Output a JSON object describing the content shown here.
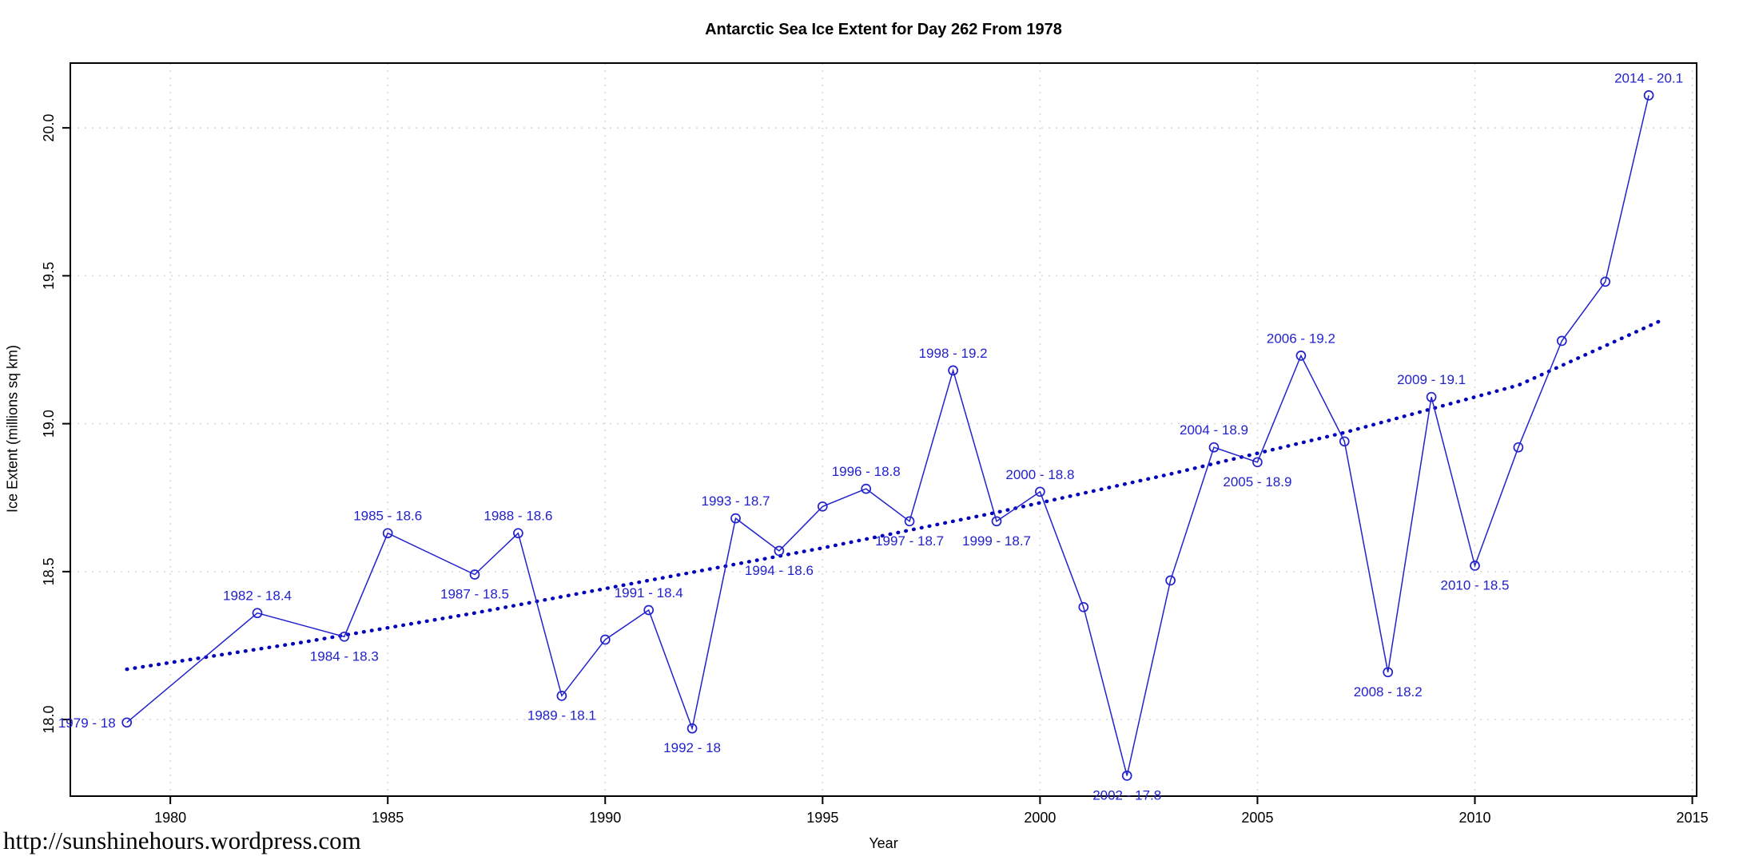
{
  "page": {
    "url_text": "http://sunshinehours.wordpress.com"
  },
  "chart_data": {
    "type": "line",
    "title": "Antarctic Sea Ice Extent for Day 262 From 1978",
    "xlabel": "Year",
    "ylabel": "Ice Extent (millions sq km)",
    "xlim": [
      1977.7,
      2015.1
    ],
    "ylim": [
      17.741,
      20.219
    ],
    "x_ticks": [
      1980,
      1985,
      1990,
      1995,
      2000,
      2005,
      2010,
      2015
    ],
    "y_ticks": [
      18.0,
      18.5,
      19.0,
      19.5,
      20.0
    ],
    "grid": true,
    "legend": "none",
    "marker_style": "open-circle",
    "colors": {
      "series": "#2222cc",
      "trend": "#0000bb",
      "grid": "#d4d4d4",
      "axis": "#000000"
    },
    "points": [
      {
        "year": 1979,
        "value": 17.99,
        "label": "1979 - 18",
        "label_pos": "left"
      },
      {
        "year": 1982,
        "value": 18.36,
        "label": "1982 - 18.4",
        "label_pos": "above"
      },
      {
        "year": 1984,
        "value": 18.28,
        "label": "1984 - 18.3",
        "label_pos": "below"
      },
      {
        "year": 1985,
        "value": 18.63,
        "label": "1985 - 18.6",
        "label_pos": "above"
      },
      {
        "year": 1987,
        "value": 18.49,
        "label": "1987 - 18.5",
        "label_pos": "below"
      },
      {
        "year": 1988,
        "value": 18.63,
        "label": "1988 - 18.6",
        "label_pos": "above"
      },
      {
        "year": 1989,
        "value": 18.08,
        "label": "1989 - 18.1",
        "label_pos": "below"
      },
      {
        "year": 1990,
        "value": 18.27
      },
      {
        "year": 1991,
        "value": 18.37,
        "label": "1991 - 18.4",
        "label_pos": "above"
      },
      {
        "year": 1992,
        "value": 17.97,
        "label": "1992 - 18",
        "label_pos": "below"
      },
      {
        "year": 1993,
        "value": 18.68,
        "label": "1993 - 18.7",
        "label_pos": "above"
      },
      {
        "year": 1994,
        "value": 18.57,
        "label": "1994 - 18.6",
        "label_pos": "below"
      },
      {
        "year": 1995,
        "value": 18.72
      },
      {
        "year": 1996,
        "value": 18.78,
        "label": "1996 - 18.8",
        "label_pos": "above"
      },
      {
        "year": 1997,
        "value": 18.67,
        "label": "1997 - 18.7",
        "label_pos": "below"
      },
      {
        "year": 1998,
        "value": 19.18,
        "label": "1998 - 19.2",
        "label_pos": "above"
      },
      {
        "year": 1999,
        "value": 18.67,
        "label": "1999 - 18.7",
        "label_pos": "below"
      },
      {
        "year": 2000,
        "value": 18.77,
        "label": "2000 - 18.8",
        "label_pos": "above"
      },
      {
        "year": 2001,
        "value": 18.38
      },
      {
        "year": 2002,
        "value": 17.81,
        "label": "2002 - 17.8",
        "label_pos": "below"
      },
      {
        "year": 2003,
        "value": 18.47
      },
      {
        "year": 2004,
        "value": 18.92,
        "label": "2004 - 18.9",
        "label_pos": "above"
      },
      {
        "year": 2005,
        "value": 18.87,
        "label": "2005 - 18.9",
        "label_pos": "below"
      },
      {
        "year": 2006,
        "value": 19.23,
        "label": "2006 - 19.2",
        "label_pos": "above"
      },
      {
        "year": 2007,
        "value": 18.94
      },
      {
        "year": 2008,
        "value": 18.16,
        "label": "2008 - 18.2",
        "label_pos": "below"
      },
      {
        "year": 2009,
        "value": 19.09,
        "label": "2009 - 19.1",
        "label_pos": "above"
      },
      {
        "year": 2010,
        "value": 18.52,
        "label": "2010 - 18.5",
        "label_pos": "below"
      },
      {
        "year": 2011,
        "value": 18.92
      },
      {
        "year": 2012,
        "value": 19.28
      },
      {
        "year": 2013,
        "value": 19.48
      },
      {
        "year": 2014,
        "value": 20.11,
        "label": "2014 - 20.1",
        "label_pos": "above"
      }
    ],
    "trend_line": {
      "style": "dotted",
      "points": [
        {
          "year": 1979,
          "value": 18.17
        },
        {
          "year": 1983,
          "value": 18.26
        },
        {
          "year": 1987,
          "value": 18.36
        },
        {
          "year": 1991,
          "value": 18.47
        },
        {
          "year": 1995,
          "value": 18.58
        },
        {
          "year": 1999,
          "value": 18.7
        },
        {
          "year": 2003,
          "value": 18.83
        },
        {
          "year": 2007,
          "value": 18.97
        },
        {
          "year": 2011,
          "value": 19.13
        },
        {
          "year": 2014.3,
          "value": 19.35
        }
      ]
    }
  }
}
